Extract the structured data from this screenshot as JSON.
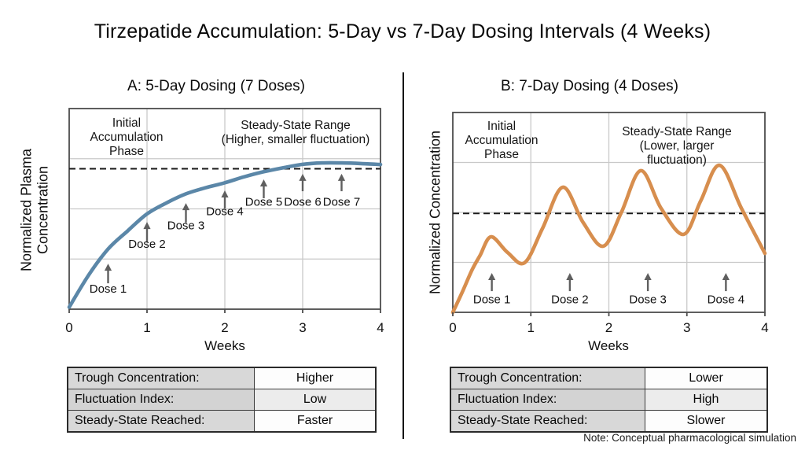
{
  "title": "Tirzepatide Accumulation: 5-Day vs 7-Day Dosing Intervals (4 Weeks)",
  "note": "Note: Conceptual pharmacological simulation",
  "colors": {
    "curve_a": "#5b87a8",
    "curve_b": "#d78e4e",
    "arrow": "#5f5f5f",
    "grid": "#c9c9c9",
    "frame": "#4d4d4d",
    "dashed": "#1a1a1a",
    "tick_text": "#111111",
    "dose_text": "#111111"
  },
  "chart_data": [
    {
      "type": "line",
      "panel": "A",
      "title": "A: 5-Day Dosing (7 Doses)",
      "xlabel": "Weeks",
      "ylabel": "Normalized Plasma\nConcentration",
      "xlim": [
        0,
        4
      ],
      "xticks": [
        0,
        1,
        2,
        3,
        4
      ],
      "grid": true,
      "annotation_phase": "Initial\nAccumulation\nPhase",
      "annotation_steady": "Steady-State Range\n(Higher, smaller fluctuation)",
      "steady_state_level": 0.7,
      "series": [
        {
          "name": "5-day dosing concentration",
          "points": [
            [
              0,
              0.01
            ],
            [
              0.25,
              0.17
            ],
            [
              0.5,
              0.3
            ],
            [
              0.75,
              0.39
            ],
            [
              1,
              0.475
            ],
            [
              1.25,
              0.53
            ],
            [
              1.5,
              0.575
            ],
            [
              1.75,
              0.605
            ],
            [
              2,
              0.63
            ],
            [
              2.25,
              0.66
            ],
            [
              2.5,
              0.685
            ],
            [
              2.75,
              0.705
            ],
            [
              3,
              0.722
            ],
            [
              3.25,
              0.729
            ],
            [
              3.5,
              0.729
            ],
            [
              3.75,
              0.726
            ],
            [
              4,
              0.721
            ]
          ]
        }
      ],
      "doses": [
        {
          "week": 0.5,
          "label": "Dose 1",
          "tip": 0.227,
          "base": 0.129,
          "label_y": 0.082
        },
        {
          "week": 1.0,
          "label": "Dose 2",
          "tip": 0.435,
          "base": 0.333,
          "label_y": 0.306
        },
        {
          "week": 1.5,
          "label": "Dose 3",
          "tip": 0.529,
          "base": 0.431,
          "label_y": 0.398
        },
        {
          "week": 2.0,
          "label": "Dose 4",
          "tip": 0.592,
          "base": 0.502,
          "label_y": 0.468
        },
        {
          "week": 2.5,
          "label": "Dose 5",
          "tip": 0.647,
          "base": 0.553,
          "label_y": 0.516
        },
        {
          "week": 3.0,
          "label": "Dose 6",
          "tip": 0.675,
          "base": 0.588,
          "label_y": 0.516
        },
        {
          "week": 3.5,
          "label": "Dose 7",
          "tip": 0.675,
          "base": 0.588,
          "label_y": 0.516
        }
      ],
      "table": {
        "rows": [
          [
            "Trough Concentration:",
            "Higher"
          ],
          [
            "Fluctuation Index:",
            "Low"
          ],
          [
            "Steady-State Reached:",
            "Faster"
          ]
        ]
      }
    },
    {
      "type": "line",
      "panel": "B",
      "title": "B: 7-Day Dosing (4 Doses)",
      "xlabel": "Weeks",
      "ylabel": "Normalized Concentration",
      "xlim": [
        0,
        4
      ],
      "xticks": [
        0,
        1,
        2,
        3,
        4
      ],
      "grid": true,
      "annotation_phase": "Initial\nAccumulation\nPhase",
      "annotation_steady": "Steady-State Range\n(Lower, larger fluctuation)",
      "steady_state_level": 0.495,
      "series": [
        {
          "name": "7-day dosing concentration",
          "points": [
            [
              0,
              0.0
            ],
            [
              0.12,
              0.1
            ],
            [
              0.25,
              0.215
            ],
            [
              0.35,
              0.285
            ],
            [
              0.49,
              0.378
            ],
            [
              0.7,
              0.3
            ],
            [
              0.92,
              0.248
            ],
            [
              1.15,
              0.42
            ],
            [
              1.41,
              0.626
            ],
            [
              1.67,
              0.45
            ],
            [
              1.93,
              0.331
            ],
            [
              2.16,
              0.5
            ],
            [
              2.41,
              0.709
            ],
            [
              2.67,
              0.52
            ],
            [
              2.96,
              0.39
            ],
            [
              3.18,
              0.56
            ],
            [
              3.42,
              0.736
            ],
            [
              3.7,
              0.52
            ],
            [
              4.0,
              0.295
            ]
          ]
        }
      ],
      "doses": [
        {
          "week": 0.5,
          "label": "Dose 1",
          "tip": 0.197,
          "base": 0.106,
          "label_y": 0.045
        },
        {
          "week": 1.5,
          "label": "Dose 2",
          "tip": 0.197,
          "base": 0.106,
          "label_y": 0.045
        },
        {
          "week": 2.5,
          "label": "Dose 3",
          "tip": 0.197,
          "base": 0.106,
          "label_y": 0.045
        },
        {
          "week": 3.5,
          "label": "Dose 4",
          "tip": 0.197,
          "base": 0.106,
          "label_y": 0.045
        }
      ],
      "table": {
        "rows": [
          [
            "Trough Concentration:",
            "Lower"
          ],
          [
            "Fluctuation Index:",
            "High"
          ],
          [
            "Steady-State Reached:",
            "Slower"
          ]
        ]
      }
    }
  ]
}
